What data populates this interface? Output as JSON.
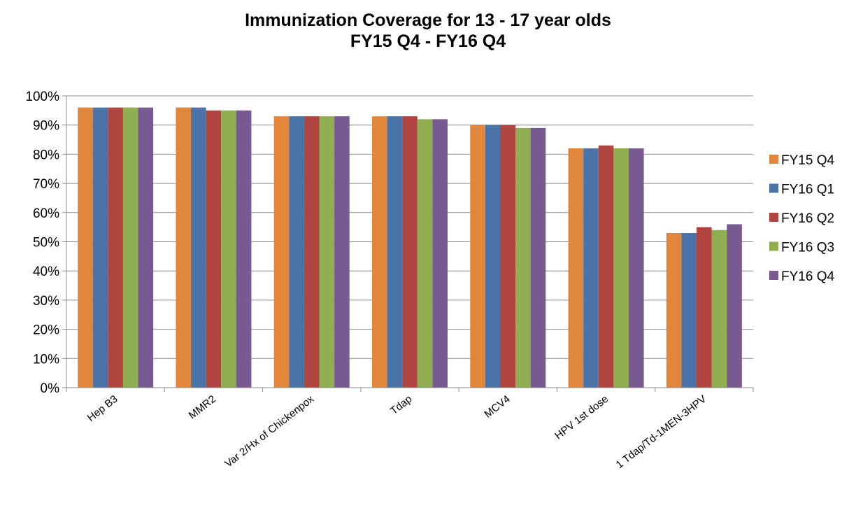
{
  "chart_data": {
    "type": "bar",
    "title": "Immunization Coverage for 13 - 17 year olds",
    "subtitle": "FY15 Q4 - FY16 Q4",
    "xlabel": "",
    "ylabel": "",
    "ylim": [
      0,
      100
    ],
    "y_ticks": [
      "0%",
      "10%",
      "20%",
      "30%",
      "40%",
      "50%",
      "60%",
      "70%",
      "80%",
      "90%",
      "100%"
    ],
    "y_tick_values": [
      0,
      10,
      20,
      30,
      40,
      50,
      60,
      70,
      80,
      90,
      100
    ],
    "grid": true,
    "legend_position": "right",
    "categories": [
      "Hep B3",
      "MMR2",
      "Var 2/Hx of Chickenpox",
      "Tdap",
      "MCV4",
      "HPV 1st dose",
      "1 Tdap/Td-1MEN-3HPV"
    ],
    "series": [
      {
        "name": "FY15 Q4",
        "color": "#E0873C",
        "values": [
          96,
          96,
          93,
          93,
          90,
          82,
          53
        ]
      },
      {
        "name": "FY16 Q1",
        "color": "#4A74A8",
        "values": [
          96,
          96,
          93,
          93,
          90,
          82,
          53
        ]
      },
      {
        "name": "FY16 Q2",
        "color": "#B0443F",
        "values": [
          96,
          95,
          93,
          93,
          90,
          83,
          55
        ]
      },
      {
        "name": "FY16 Q3",
        "color": "#8FAE4F",
        "values": [
          96,
          95,
          93,
          92,
          89,
          82,
          54
        ]
      },
      {
        "name": "FY16 Q4",
        "color": "#785A93",
        "values": [
          96,
          95,
          93,
          92,
          89,
          82,
          56
        ]
      }
    ]
  }
}
